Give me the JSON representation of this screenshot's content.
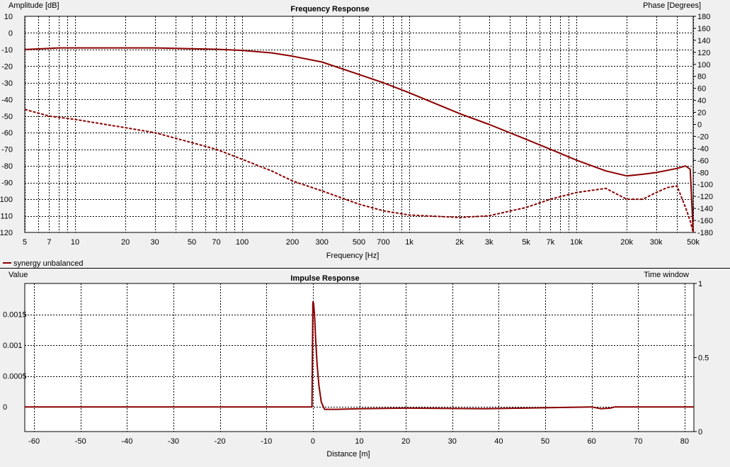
{
  "colors": {
    "series": "#8b0000",
    "plot_bg": "#ffffff",
    "panel_bg": "#f0f0f0",
    "grid": "#000000",
    "divider": "#000000"
  },
  "legend": {
    "label": "synergy unbalanced",
    "placement": "top-left below frequency plot"
  },
  "chart_data": [
    {
      "type": "line",
      "title": "Frequency Response",
      "xlabel": "Frequency [Hz]",
      "ylabel": "Amplitude [dB]",
      "y2label": "Phase [Degrees]",
      "xscale": "log",
      "xlim": [
        5,
        50000
      ],
      "ylim": [
        -120,
        10
      ],
      "y2lim": [
        -180,
        180
      ],
      "grid": true,
      "x_ticks": [
        {
          "v": 5,
          "t": "5"
        },
        {
          "v": 7,
          "t": "7"
        },
        {
          "v": 10,
          "t": "10"
        },
        {
          "v": 20,
          "t": "20"
        },
        {
          "v": 30,
          "t": "30"
        },
        {
          "v": 50,
          "t": "50"
        },
        {
          "v": 70,
          "t": "70"
        },
        {
          "v": 100,
          "t": "100"
        },
        {
          "v": 200,
          "t": "200"
        },
        {
          "v": 300,
          "t": "300"
        },
        {
          "v": 500,
          "t": "500"
        },
        {
          "v": 700,
          "t": "700"
        },
        {
          "v": 1000,
          "t": "1k"
        },
        {
          "v": 2000,
          "t": "2k"
        },
        {
          "v": 3000,
          "t": "3k"
        },
        {
          "v": 5000,
          "t": "5k"
        },
        {
          "v": 7000,
          "t": "7k"
        },
        {
          "v": 10000,
          "t": "10k"
        },
        {
          "v": 20000,
          "t": "20k"
        },
        {
          "v": 30000,
          "t": "30k"
        },
        {
          "v": 50000,
          "t": "50k"
        }
      ],
      "y_ticks": [
        10,
        0,
        -10,
        -20,
        -30,
        -40,
        -50,
        -60,
        -70,
        -80,
        -90,
        -100,
        -110,
        -120
      ],
      "y2_ticks": [
        180,
        160,
        140,
        120,
        100,
        80,
        60,
        40,
        20,
        0,
        -20,
        -40,
        -60,
        -80,
        -100,
        -120,
        -140,
        -160,
        -180
      ],
      "series": [
        {
          "name": "synergy unbalanced",
          "role": "amplitude",
          "style": "solid",
          "x": [
            5,
            8,
            10,
            20,
            30,
            50,
            70,
            100,
            150,
            200,
            300,
            500,
            700,
            1000,
            2000,
            3000,
            5000,
            7000,
            10000,
            15000,
            20000,
            25000,
            30000,
            40000,
            45000,
            48000,
            50000
          ],
          "y": [
            -10,
            -9,
            -9,
            -9,
            -9,
            -9.5,
            -9.8,
            -10.5,
            -12,
            -14,
            -17.5,
            -25,
            -30,
            -36,
            -48.5,
            -55,
            -64,
            -70,
            -76.5,
            -83,
            -86,
            -85,
            -84,
            -81.5,
            -80,
            -82,
            -120
          ]
        },
        {
          "name": "synergy unbalanced",
          "role": "phase",
          "style": "dashed",
          "x": [
            5,
            7,
            10,
            20,
            30,
            50,
            70,
            100,
            150,
            200,
            300,
            500,
            700,
            1000,
            2000,
            3000,
            5000,
            7000,
            10000,
            15000,
            20000,
            25000,
            30000,
            35000,
            40000,
            45000,
            48000,
            50000
          ],
          "y": [
            -46,
            -50,
            -52,
            -57,
            -60,
            -66,
            -70,
            -76,
            -83,
            -89,
            -95,
            -103,
            -107,
            -109.5,
            -111,
            -110,
            -105,
            -100,
            -96,
            -93.5,
            -100,
            -100,
            -96,
            -93,
            -92,
            -105,
            -113,
            -120
          ]
        }
      ]
    },
    {
      "type": "line",
      "title": "Impulse Response",
      "xlabel": "Distance [m]",
      "ylabel": "Value",
      "y2label": "Time window",
      "xlim": [
        -62,
        82
      ],
      "ylim": [
        -0.0004,
        0.002
      ],
      "y2lim": [
        0,
        1
      ],
      "grid": true,
      "x_ticks": [
        -60,
        -50,
        -40,
        -30,
        -20,
        -10,
        0,
        10,
        20,
        30,
        40,
        50,
        60,
        70,
        80
      ],
      "y_ticks": [
        {
          "v": 0.0015,
          "t": "0.0015"
        },
        {
          "v": 0.001,
          "t": "0.001"
        },
        {
          "v": 0.0005,
          "t": "0.0005"
        },
        {
          "v": 0,
          "t": "0"
        }
      ],
      "y2_ticks": [
        1,
        0.5,
        0
      ],
      "series": [
        {
          "name": "synergy unbalanced",
          "x": [
            -62,
            -0.2,
            0,
            0.15,
            0.35,
            0.6,
            0.9,
            1.3,
            1.8,
            2.5,
            5,
            10,
            20,
            37,
            60,
            62,
            64,
            65,
            82
          ],
          "y": [
            0,
            0,
            0.0017,
            0.00168,
            0.0015,
            0.0011,
            0.0007,
            0.00035,
            8e-05,
            -4e-05,
            -4e-05,
            -3e-05,
            -2e-05,
            -3e-05,
            0,
            -3e-05,
            -2e-05,
            0,
            0
          ]
        }
      ]
    }
  ]
}
